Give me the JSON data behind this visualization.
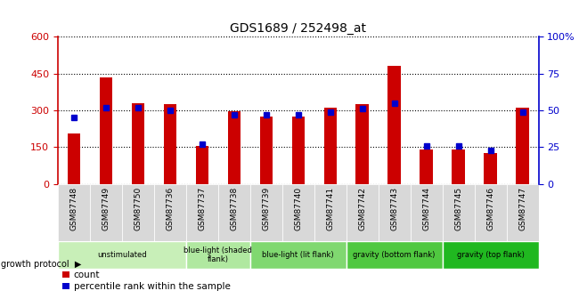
{
  "title": "GDS1689 / 252498_at",
  "samples": [
    "GSM87748",
    "GSM87749",
    "GSM87750",
    "GSM87736",
    "GSM87737",
    "GSM87738",
    "GSM87739",
    "GSM87740",
    "GSM87741",
    "GSM87742",
    "GSM87743",
    "GSM87744",
    "GSM87745",
    "GSM87746",
    "GSM87747"
  ],
  "counts": [
    205,
    435,
    330,
    325,
    155,
    295,
    275,
    275,
    310,
    325,
    480,
    140,
    140,
    125,
    310
  ],
  "percentiles": [
    45,
    52,
    52,
    50,
    27,
    47,
    47,
    47,
    49,
    51,
    55,
    26,
    26,
    23,
    49
  ],
  "groups": [
    {
      "label": "unstimulated",
      "indices": [
        0,
        1,
        2,
        3
      ],
      "color": "#c8efb8"
    },
    {
      "label": "blue-light (shaded\nflank)",
      "indices": [
        4,
        5
      ],
      "color": "#b0e8a0"
    },
    {
      "label": "blue-light (lit flank)",
      "indices": [
        6,
        7,
        8
      ],
      "color": "#80d870"
    },
    {
      "label": "gravity (bottom flank)",
      "indices": [
        9,
        10,
        11
      ],
      "color": "#50c840"
    },
    {
      "label": "gravity (top flank)",
      "indices": [
        12,
        13,
        14
      ],
      "color": "#20b820"
    }
  ],
  "ylim_left": [
    0,
    600
  ],
  "ylim_right": [
    0,
    100
  ],
  "yticks_left": [
    0,
    150,
    300,
    450,
    600
  ],
  "yticks_right": [
    0,
    25,
    50,
    75,
    100
  ],
  "bar_color": "#cc0000",
  "dot_color": "#0000cc",
  "plot_bg": "#ffffff",
  "xtick_bg": "#d8d8d8",
  "growth_protocol_label": "growth protocol",
  "legend_count": "count",
  "legend_percentile": "percentile rank within the sample"
}
